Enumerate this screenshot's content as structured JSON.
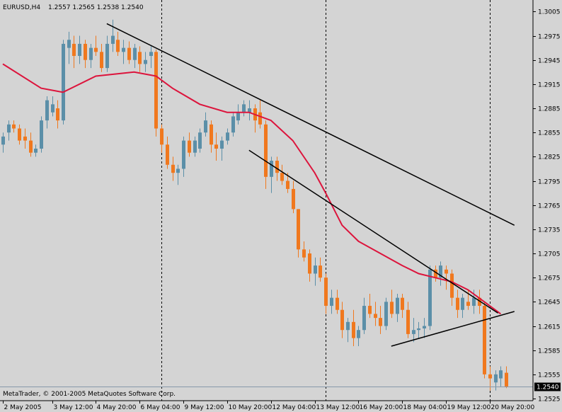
{
  "header": {
    "symbol": "EURUSD,H4",
    "ohlc": "1.2557 1.2565 1.2538 1.2540"
  },
  "copyright": "MetaTrader, © 2001-2005 MetaQuotes Software Corp.",
  "colors": {
    "background": "#d4d4d4",
    "bull_candle": "#5b8fa8",
    "bear_candle": "#f0781e",
    "moving_average": "#dc143c",
    "trendline": "#000000",
    "axis": "#000000",
    "current_price_line": "#8899aa"
  },
  "chart_data": {
    "type": "candlestick",
    "symbol": "EURUSD",
    "timeframe": "H4",
    "ylim": [
      1.2525,
      1.3015
    ],
    "y_ticks": [
      1.3005,
      1.2975,
      1.2945,
      1.2915,
      1.2885,
      1.2855,
      1.2825,
      1.2795,
      1.2765,
      1.2735,
      1.2705,
      1.2675,
      1.2645,
      1.2615,
      1.2585,
      1.2555,
      1.2525
    ],
    "y_tick_labels": [
      "1.3005",
      "1.2975",
      "1.2945",
      "1.2915",
      "1.2885",
      "1.2855",
      "1.2825",
      "1.2795",
      "1.2765",
      "1.2735",
      "1.2705",
      "1.2675",
      "1.2645",
      "1.2615",
      "1.2585",
      "1.2555",
      "1.2525"
    ],
    "x_labels": [
      {
        "label": "2 May 2005",
        "bar": 0
      },
      {
        "label": "3 May 12:00",
        "bar": 9
      },
      {
        "label": "4 May 20:00",
        "bar": 17
      },
      {
        "label": "6 May 04:00",
        "bar": 25
      },
      {
        "label": "9 May 12:00",
        "bar": 33
      },
      {
        "label": "10 May 20:00",
        "bar": 41
      },
      {
        "label": "12 May 04:00",
        "bar": 49
      },
      {
        "label": "13 May 12:00",
        "bar": 57
      },
      {
        "label": "16 May 20:00",
        "bar": 65
      },
      {
        "label": "18 May 04:00",
        "bar": 73
      },
      {
        "label": "19 May 12:00",
        "bar": 81
      },
      {
        "label": "20 May 20:00",
        "bar": 89
      }
    ],
    "separators": [
      29,
      59,
      89
    ],
    "current_price": 1.254,
    "current_price_label": "1.2540",
    "candles": [
      [
        1.284,
        1.2855,
        1.283,
        1.285
      ],
      [
        1.2855,
        1.287,
        1.2845,
        1.2865
      ],
      [
        1.2865,
        1.287,
        1.2855,
        1.286
      ],
      [
        1.286,
        1.2865,
        1.284,
        1.2845
      ],
      [
        1.285,
        1.286,
        1.2835,
        1.2845
      ],
      [
        1.2845,
        1.2855,
        1.2825,
        1.283
      ],
      [
        1.283,
        1.284,
        1.2825,
        1.2835
      ],
      [
        1.2835,
        1.2875,
        1.283,
        1.287
      ],
      [
        1.287,
        1.29,
        1.286,
        1.2895
      ],
      [
        1.288,
        1.29,
        1.2875,
        1.289
      ],
      [
        1.2885,
        1.2895,
        1.286,
        1.287
      ],
      [
        1.287,
        1.297,
        1.2865,
        1.2965
      ],
      [
        1.296,
        1.298,
        1.294,
        1.297
      ],
      [
        1.2965,
        1.2975,
        1.2935,
        1.295
      ],
      [
        1.295,
        1.2975,
        1.294,
        1.2965
      ],
      [
        1.2965,
        1.297,
        1.2935,
        1.2945
      ],
      [
        1.2945,
        1.2965,
        1.2935,
        1.296
      ],
      [
        1.296,
        1.2975,
        1.295,
        1.2955
      ],
      [
        1.2955,
        1.2965,
        1.293,
        1.2935
      ],
      [
        1.2935,
        1.2975,
        1.293,
        1.2965
      ],
      [
        1.2965,
        1.2995,
        1.2955,
        1.2975
      ],
      [
        1.297,
        1.298,
        1.295,
        1.2955
      ],
      [
        1.2955,
        1.297,
        1.294,
        1.296
      ],
      [
        1.296,
        1.2968,
        1.294,
        1.2945
      ],
      [
        1.2945,
        1.2965,
        1.2935,
        1.296
      ],
      [
        1.2955,
        1.2962,
        1.293,
        1.294
      ],
      [
        1.294,
        1.2955,
        1.293,
        1.2945
      ],
      [
        1.295,
        1.2962,
        1.2935,
        1.2955
      ],
      [
        1.2955,
        1.2958,
        1.285,
        1.286
      ],
      [
        1.286,
        1.2865,
        1.283,
        1.284
      ],
      [
        1.284,
        1.285,
        1.281,
        1.2815
      ],
      [
        1.2815,
        1.2825,
        1.2795,
        1.2805
      ],
      [
        1.2805,
        1.2815,
        1.279,
        1.281
      ],
      [
        1.281,
        1.285,
        1.28,
        1.2845
      ],
      [
        1.2845,
        1.2855,
        1.2825,
        1.283
      ],
      [
        1.283,
        1.285,
        1.2825,
        1.2845
      ],
      [
        1.2835,
        1.286,
        1.283,
        1.2855
      ],
      [
        1.2855,
        1.288,
        1.285,
        1.287
      ],
      [
        1.2865,
        1.287,
        1.283,
        1.284
      ],
      [
        1.284,
        1.2855,
        1.282,
        1.2835
      ],
      [
        1.2835,
        1.285,
        1.282,
        1.2845
      ],
      [
        1.2845,
        1.286,
        1.284,
        1.2855
      ],
      [
        1.2855,
        1.288,
        1.285,
        1.2875
      ],
      [
        1.287,
        1.289,
        1.2865,
        1.288
      ],
      [
        1.288,
        1.2895,
        1.2875,
        1.289
      ],
      [
        1.288,
        1.2895,
        1.287,
        1.2885
      ],
      [
        1.2885,
        1.289,
        1.2855,
        1.287
      ],
      [
        1.288,
        1.2895,
        1.286,
        1.2865
      ],
      [
        1.2865,
        1.287,
        1.2785,
        1.28
      ],
      [
        1.28,
        1.2825,
        1.278,
        1.282
      ],
      [
        1.282,
        1.2825,
        1.2795,
        1.2805
      ],
      [
        1.2805,
        1.2815,
        1.279,
        1.2795
      ],
      [
        1.2795,
        1.2805,
        1.278,
        1.2785
      ],
      [
        1.2785,
        1.2795,
        1.2755,
        1.276
      ],
      [
        1.276,
        1.276,
        1.27,
        1.271
      ],
      [
        1.271,
        1.272,
        1.2695,
        1.27
      ],
      [
        1.2705,
        1.271,
        1.267,
        1.268
      ],
      [
        1.268,
        1.27,
        1.2665,
        1.269
      ],
      [
        1.269,
        1.27,
        1.267,
        1.2675
      ],
      [
        1.2675,
        1.268,
        1.263,
        1.264
      ],
      [
        1.264,
        1.266,
        1.263,
        1.265
      ],
      [
        1.265,
        1.266,
        1.263,
        1.2635
      ],
      [
        1.2635,
        1.2645,
        1.26,
        1.261
      ],
      [
        1.261,
        1.2625,
        1.2595,
        1.262
      ],
      [
        1.262,
        1.2635,
        1.259,
        1.26
      ],
      [
        1.26,
        1.2615,
        1.259,
        1.261
      ],
      [
        1.261,
        1.265,
        1.2605,
        1.264
      ],
      [
        1.264,
        1.2655,
        1.2625,
        1.263
      ],
      [
        1.263,
        1.2645,
        1.2615,
        1.2625
      ],
      [
        1.2625,
        1.264,
        1.2605,
        1.2615
      ],
      [
        1.2615,
        1.265,
        1.261,
        1.2645
      ],
      [
        1.2645,
        1.266,
        1.2625,
        1.263
      ],
      [
        1.263,
        1.2655,
        1.262,
        1.265
      ],
      [
        1.265,
        1.2655,
        1.2625,
        1.2635
      ],
      [
        1.2635,
        1.2645,
        1.26,
        1.2605
      ],
      [
        1.2605,
        1.2625,
        1.2595,
        1.261
      ],
      [
        1.261,
        1.262,
        1.26,
        1.2612
      ],
      [
        1.2612,
        1.2625,
        1.26,
        1.2615
      ],
      [
        1.2615,
        1.269,
        1.261,
        1.2685
      ],
      [
        1.2685,
        1.269,
        1.267,
        1.2675
      ],
      [
        1.2675,
        1.2695,
        1.2665,
        1.269
      ],
      [
        1.2685,
        1.269,
        1.266,
        1.268
      ],
      [
        1.268,
        1.2685,
        1.264,
        1.265
      ],
      [
        1.265,
        1.266,
        1.2625,
        1.2635
      ],
      [
        1.2635,
        1.2655,
        1.2625,
        1.265
      ],
      [
        1.2645,
        1.266,
        1.2635,
        1.264
      ],
      [
        1.264,
        1.266,
        1.263,
        1.265
      ],
      [
        1.265,
        1.266,
        1.263,
        1.264
      ],
      [
        1.264,
        1.2645,
        1.255,
        1.2555
      ],
      [
        1.2555,
        1.2565,
        1.2535,
        1.255
      ],
      [
        1.2545,
        1.256,
        1.2535,
        1.2555
      ],
      [
        1.255,
        1.2565,
        1.254,
        1.256
      ],
      [
        1.2557,
        1.2565,
        1.2538,
        1.254
      ]
    ],
    "moving_average": [
      [
        0,
        1.294
      ],
      [
        7,
        1.291
      ],
      [
        11,
        1.2905
      ],
      [
        17,
        1.2925
      ],
      [
        24,
        1.293
      ],
      [
        28,
        1.2925
      ],
      [
        31,
        1.291
      ],
      [
        36,
        1.289
      ],
      [
        41,
        1.288
      ],
      [
        45,
        1.288
      ],
      [
        49,
        1.287
      ],
      [
        53,
        1.2845
      ],
      [
        57,
        1.2805
      ],
      [
        59,
        1.278
      ],
      [
        62,
        1.274
      ],
      [
        65,
        1.272
      ],
      [
        69,
        1.2705
      ],
      [
        73,
        1.269
      ],
      [
        76,
        1.268
      ],
      [
        79,
        1.2675
      ],
      [
        82,
        1.267
      ],
      [
        85,
        1.266
      ],
      [
        88,
        1.2645
      ],
      [
        91,
        1.263
      ]
    ],
    "trendlines": [
      {
        "from": [
          19,
          1.299
        ],
        "to": [
          93.5,
          1.274
        ]
      },
      {
        "from": [
          45,
          1.2833
        ],
        "to": [
          90.5,
          1.2631
        ]
      },
      {
        "from": [
          71,
          1.259
        ],
        "to": [
          93.5,
          1.2633
        ]
      }
    ]
  }
}
